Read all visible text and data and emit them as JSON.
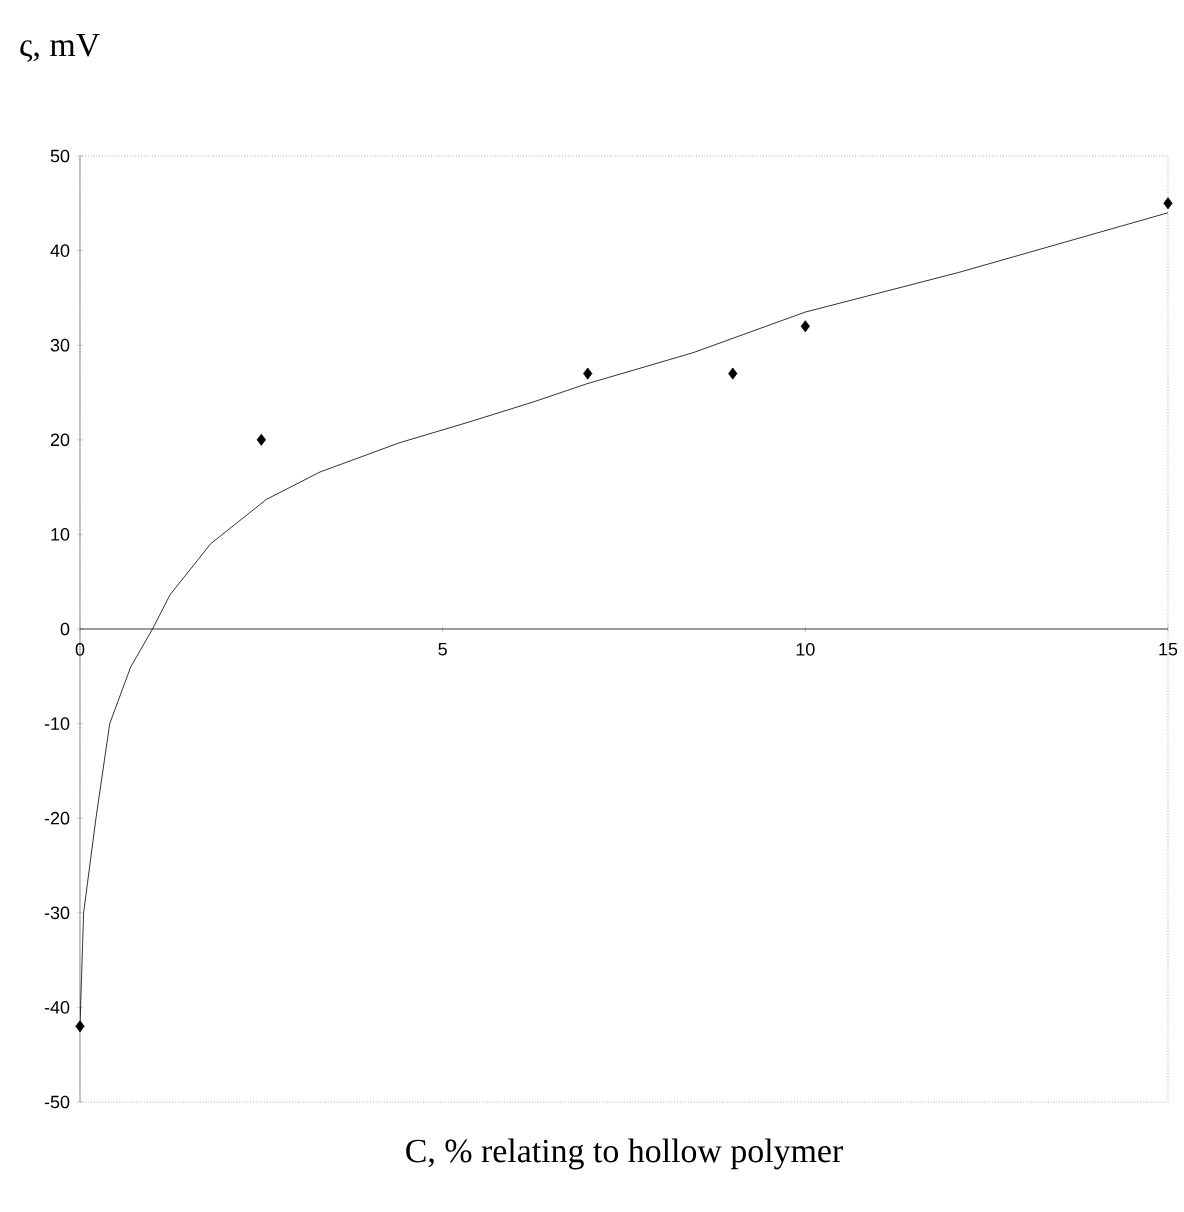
{
  "chart_data": {
    "type": "scatter",
    "xlabel": "C, % relating to hollow polymer",
    "ylabel": "ς, mV",
    "xlim": [
      0,
      15
    ],
    "ylim": [
      -50,
      50
    ],
    "xticks": [
      0,
      5,
      10,
      15
    ],
    "yticks": [
      -50,
      -40,
      -30,
      -20,
      -10,
      0,
      10,
      20,
      30,
      40,
      50
    ],
    "grid": false,
    "series": [
      {
        "color": "#000000",
        "marker": "diamond",
        "x": [
          0,
          2.5,
          7,
          9,
          10,
          15
        ],
        "values": [
          -42,
          20,
          27,
          27,
          32,
          45
        ]
      },
      {
        "type": "line",
        "color": "#000000",
        "marker": "none",
        "line_style": "solid",
        "x": [
          0,
          0.05,
          0.22,
          0.41,
          0.7,
          1.0,
          1.24,
          1.8,
          2.57,
          3.31,
          4.41,
          5.33,
          6.25,
          6.98,
          8.45,
          10,
          12.12,
          15
        ],
        "values": [
          -42,
          -30,
          -20,
          -10,
          -4,
          0,
          3.6,
          9,
          13.7,
          16.6,
          19.7,
          21.8,
          24,
          25.9,
          29.2,
          33.5,
          37.7,
          44
        ]
      }
    ]
  }
}
